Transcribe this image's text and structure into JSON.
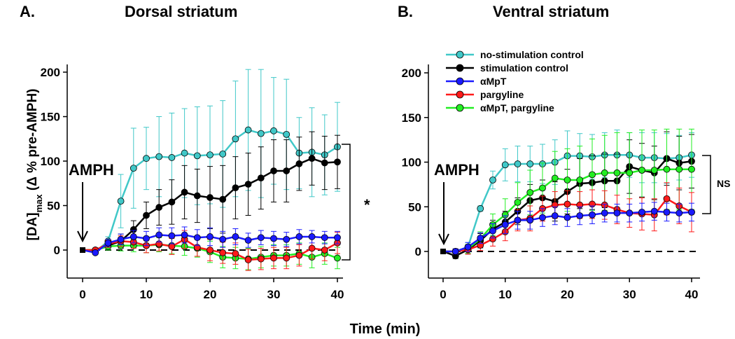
{
  "figure": {
    "xlabel": "Time (min)",
    "ylabel_main": "[DA]",
    "ylabel_sub": "max",
    "ylabel_rest": " (Δ % pre-AMPH)"
  },
  "series_meta": [
    {
      "key": "nostim",
      "name": "no-stimulation control",
      "color": "#40c8c8"
    },
    {
      "key": "stim",
      "name": "stimulation control",
      "color": "#000000"
    },
    {
      "key": "ampt",
      "name": "αMpT",
      "color": "#1a1aff"
    },
    {
      "key": "parg",
      "name": "pargyline",
      "color": "#ff1a1a"
    },
    {
      "key": "amptparg",
      "name": "αMpT, pargyline",
      "color": "#22ee22"
    }
  ],
  "chart_data": [
    {
      "type": "line",
      "panel_letter": "A.",
      "title": "Dorsal striatum",
      "annotation": "AMPH",
      "significance": "*",
      "xlim": [
        -2,
        40
      ],
      "ylim": [
        -30,
        210
      ],
      "xticks": [
        0,
        10,
        20,
        30,
        40
      ],
      "yticks": [
        0,
        50,
        100,
        150,
        200
      ],
      "grid": false,
      "legend": "none",
      "x": [
        0,
        2,
        4,
        6,
        8,
        10,
        12,
        14,
        16,
        18,
        20,
        22,
        24,
        26,
        28,
        30,
        32,
        34,
        36,
        38,
        40
      ],
      "series": [
        {
          "key": "nostim",
          "values": [
            0,
            -2,
            10,
            55,
            92,
            103,
            105,
            104,
            109,
            106,
            107,
            108,
            125,
            135,
            131,
            134,
            130,
            109,
            110,
            107,
            116
          ],
          "errors": [
            0,
            2,
            5,
            30,
            45,
            35,
            45,
            50,
            50,
            55,
            55,
            60,
            65,
            68,
            72,
            60,
            62,
            40,
            50,
            45,
            50
          ]
        },
        {
          "key": "stim",
          "values": [
            0,
            0,
            5,
            10,
            23,
            39,
            48,
            54,
            65,
            61,
            59,
            57,
            70,
            74,
            81,
            89,
            89,
            97,
            103,
            98,
            99
          ],
          "errors": [
            0,
            2,
            5,
            8,
            10,
            15,
            20,
            25,
            30,
            30,
            35,
            38,
            35,
            35,
            35,
            35,
            35,
            30,
            30,
            30,
            30
          ]
        },
        {
          "key": "ampt",
          "values": [
            0,
            -3,
            8,
            12,
            15,
            13,
            17,
            16,
            17,
            14,
            15,
            12,
            15,
            11,
            14,
            13,
            12,
            15,
            15,
            14,
            14
          ],
          "errors": [
            0,
            2,
            4,
            6,
            7,
            8,
            8,
            9,
            9,
            9,
            10,
            9,
            9,
            8,
            8,
            8,
            8,
            8,
            7,
            7,
            7
          ]
        },
        {
          "key": "parg",
          "values": [
            0,
            0,
            7,
            10,
            9,
            5,
            7,
            4,
            12,
            3,
            0,
            -3,
            -4,
            -11,
            -10,
            -9,
            -9,
            -6,
            2,
            0,
            8
          ],
          "errors": [
            0,
            2,
            4,
            6,
            7,
            8,
            8,
            9,
            10,
            10,
            12,
            12,
            12,
            12,
            12,
            12,
            12,
            12,
            12,
            12,
            12
          ]
        },
        {
          "key": "amptparg",
          "values": [
            0,
            0,
            4,
            5,
            5,
            5,
            6,
            5,
            4,
            2,
            -2,
            -8,
            -9,
            -10,
            -8,
            -6,
            -6,
            -4,
            -8,
            -4,
            -9
          ],
          "errors": [
            0,
            2,
            4,
            6,
            7,
            8,
            8,
            9,
            10,
            10,
            12,
            12,
            12,
            12,
            12,
            12,
            12,
            12,
            12,
            12,
            12
          ]
        }
      ]
    },
    {
      "type": "line",
      "panel_letter": "B.",
      "title": "Ventral striatum",
      "annotation": "AMPH",
      "significance": "NS",
      "xlim": [
        -2,
        40
      ],
      "ylim": [
        -30,
        210
      ],
      "xticks": [
        0,
        10,
        20,
        30,
        40
      ],
      "yticks": [
        0,
        50,
        100,
        150,
        200
      ],
      "grid": false,
      "legend": "top",
      "x": [
        0,
        2,
        4,
        6,
        8,
        10,
        12,
        14,
        16,
        18,
        20,
        22,
        24,
        26,
        28,
        30,
        32,
        34,
        36,
        38,
        40
      ],
      "series": [
        {
          "key": "nostim",
          "values": [
            0,
            0,
            5,
            48,
            80,
            97,
            98,
            98,
            98,
            100,
            107,
            107,
            106,
            108,
            108,
            108,
            105,
            105,
            104,
            105,
            108
          ],
          "errors": [
            0,
            3,
            5,
            3,
            10,
            18,
            20,
            20,
            22,
            25,
            28,
            25,
            25,
            25,
            28,
            25,
            28,
            28,
            28,
            25,
            25
          ]
        },
        {
          "key": "stim",
          "values": [
            0,
            -5,
            2,
            12,
            25,
            33,
            45,
            57,
            60,
            56,
            67,
            76,
            77,
            79,
            79,
            95,
            91,
            88,
            104,
            99,
            101
          ],
          "errors": [
            0,
            3,
            5,
            8,
            10,
            12,
            15,
            18,
            20,
            22,
            25,
            28,
            30,
            30,
            30,
            30,
            30,
            30,
            30,
            30,
            30
          ]
        },
        {
          "key": "ampt",
          "values": [
            0,
            0,
            5,
            15,
            23,
            30,
            35,
            35,
            38,
            40,
            38,
            40,
            41,
            43,
            43,
            43,
            44,
            45,
            44,
            43,
            44
          ],
          "errors": [
            0,
            3,
            5,
            6,
            8,
            10,
            10,
            10,
            10,
            10,
            10,
            10,
            10,
            10,
            10,
            10,
            10,
            10,
            10,
            10,
            10
          ]
        },
        {
          "key": "parg",
          "values": [
            0,
            0,
            2,
            7,
            14,
            22,
            35,
            37,
            48,
            52,
            53,
            52,
            53,
            52,
            47,
            43,
            42,
            41,
            59,
            51,
            44
          ],
          "errors": [
            0,
            3,
            5,
            6,
            8,
            10,
            12,
            14,
            14,
            15,
            15,
            15,
            16,
            16,
            16,
            16,
            18,
            18,
            18,
            20,
            22
          ]
        },
        {
          "key": "amptparg",
          "values": [
            0,
            0,
            3,
            14,
            30,
            41,
            55,
            66,
            71,
            82,
            80,
            80,
            86,
            88,
            88,
            88,
            91,
            91,
            92,
            92,
            92
          ],
          "errors": [
            0,
            3,
            5,
            8,
            12,
            18,
            22,
            25,
            28,
            30,
            35,
            38,
            40,
            42,
            45,
            45,
            45,
            45,
            45,
            45,
            45
          ]
        }
      ]
    }
  ]
}
